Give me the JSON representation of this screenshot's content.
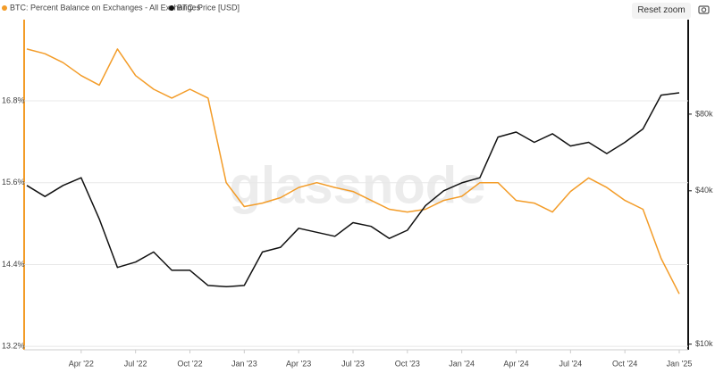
{
  "chart_data": {
    "type": "line",
    "watermark": "glassnode",
    "x": [
      "2022-01",
      "2022-02",
      "2022-03",
      "2022-04",
      "2022-05",
      "2022-06",
      "2022-07",
      "2022-08",
      "2022-09",
      "2022-10",
      "2022-11",
      "2022-12",
      "2023-01",
      "2023-02",
      "2023-03",
      "2023-04",
      "2023-05",
      "2023-06",
      "2023-07",
      "2023-08",
      "2023-09",
      "2023-10",
      "2023-11",
      "2023-12",
      "2024-01",
      "2024-02",
      "2024-03",
      "2024-04",
      "2024-05",
      "2024-06",
      "2024-07",
      "2024-08",
      "2024-09",
      "2024-10",
      "2024-11",
      "2024-12",
      "2025-01"
    ],
    "series": [
      {
        "name": "BTC: Percent Balance on Exchanges - All Exchanges",
        "color": "#f39c28",
        "axis": "y",
        "values": [
          17.56,
          17.49,
          17.36,
          17.17,
          17.03,
          17.56,
          17.17,
          16.97,
          16.84,
          16.97,
          16.84,
          15.6,
          15.25,
          15.3,
          15.38,
          15.53,
          15.6,
          15.53,
          15.47,
          15.34,
          15.21,
          15.17,
          15.21,
          15.34,
          15.4,
          15.6,
          15.6,
          15.34,
          15.3,
          15.17,
          15.47,
          15.67,
          15.53,
          15.34,
          15.21,
          14.49,
          13.97
        ]
      },
      {
        "name": "BTC: Price [USD]",
        "color": "#111111",
        "axis": "y2",
        "values": [
          42000,
          38000,
          42000,
          45000,
          31000,
          20000,
          21000,
          23000,
          19500,
          19500,
          17000,
          16800,
          17000,
          23000,
          24000,
          28500,
          27500,
          26500,
          30000,
          29000,
          26000,
          28000,
          35000,
          40000,
          43000,
          45000,
          65000,
          68000,
          62000,
          67000,
          60000,
          62000,
          56000,
          62000,
          70000,
          95000,
          97000
        ]
      }
    ],
    "xlim": [
      "2022-01",
      "2025-01"
    ],
    "xticks": [
      {
        "value": "2022-04",
        "label": "Apr '22"
      },
      {
        "value": "2022-07",
        "label": "Jul '22"
      },
      {
        "value": "2022-10",
        "label": "Oct '22"
      },
      {
        "value": "2023-01",
        "label": "Jan '23"
      },
      {
        "value": "2023-04",
        "label": "Apr '23"
      },
      {
        "value": "2023-07",
        "label": "Jul '23"
      },
      {
        "value": "2023-10",
        "label": "Oct '23"
      },
      {
        "value": "2024-01",
        "label": "Jan '24"
      },
      {
        "value": "2024-04",
        "label": "Apr '24"
      },
      {
        "value": "2024-07",
        "label": "Jul '24"
      },
      {
        "value": "2024-10",
        "label": "Oct '24"
      },
      {
        "value": "2025-01",
        "label": "Jan '25"
      }
    ],
    "ylim": [
      13.15,
      17.99
    ],
    "yticks": [
      {
        "value": 13.2,
        "label": "13.2%"
      },
      {
        "value": 14.4,
        "label": "14.4%"
      },
      {
        "value": 15.6,
        "label": "15.6%"
      },
      {
        "value": 16.8,
        "label": "16.8%"
      }
    ],
    "y2lim": [
      9500,
      188000
    ],
    "y2scale": "log",
    "y2ticks": [
      {
        "value": 10000,
        "label": "$10k"
      },
      {
        "value": 40000,
        "label": "$40k"
      },
      {
        "value": 80000,
        "label": "$80k"
      }
    ],
    "grid": true
  },
  "controls": {
    "reset_zoom": "Reset zoom"
  }
}
